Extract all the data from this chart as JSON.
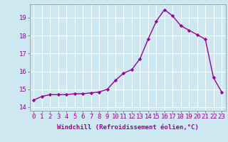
{
  "x": [
    0,
    1,
    2,
    3,
    4,
    5,
    6,
    7,
    8,
    9,
    10,
    11,
    12,
    13,
    14,
    15,
    16,
    17,
    18,
    19,
    20,
    21,
    22,
    23
  ],
  "y": [
    14.4,
    14.6,
    14.7,
    14.7,
    14.7,
    14.75,
    14.75,
    14.8,
    14.85,
    15.0,
    15.5,
    15.9,
    16.1,
    16.7,
    17.8,
    18.8,
    19.45,
    19.1,
    18.55,
    18.3,
    18.05,
    17.8,
    15.65,
    14.85
  ],
  "line_color": "#990099",
  "marker_color": "#990099",
  "bg_color": "#cde8f0",
  "grid_color": "#ffffff",
  "xlabel": "Windchill (Refroidissement éolien,°C)",
  "xlim": [
    -0.5,
    23.5
  ],
  "ylim": [
    13.8,
    19.75
  ],
  "xticks": [
    0,
    1,
    2,
    3,
    4,
    5,
    6,
    7,
    8,
    9,
    10,
    11,
    12,
    13,
    14,
    15,
    16,
    17,
    18,
    19,
    20,
    21,
    22,
    23
  ],
  "yticks": [
    14,
    15,
    16,
    17,
    18,
    19
  ],
  "axis_fontsize": 6.5,
  "tick_fontsize": 6.5,
  "linewidth": 1.0,
  "markersize": 2.2
}
